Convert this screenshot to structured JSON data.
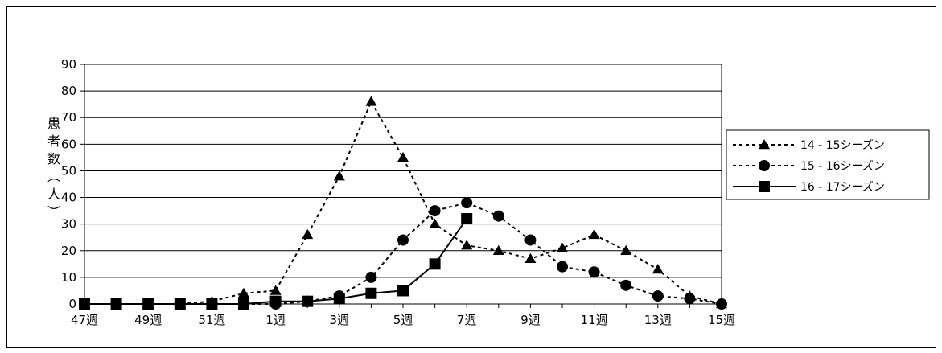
{
  "chart_data": {
    "type": "line",
    "ylabel": "患者数（人）",
    "xlabel": "",
    "ylim": [
      0,
      90
    ],
    "yticks": [
      0,
      10,
      20,
      30,
      40,
      50,
      60,
      70,
      80,
      90
    ],
    "categories": [
      "47週",
      "48週",
      "49週",
      "50週",
      "51週",
      "52週",
      "1週",
      "2週",
      "3週",
      "4週",
      "5週",
      "6週",
      "7週",
      "8週",
      "9週",
      "10週",
      "11週",
      "12週",
      "13週",
      "14週",
      "15週"
    ],
    "xtick_labels": [
      "47週",
      "",
      "49週",
      "",
      "51週",
      "",
      "1週",
      "",
      "3週",
      "",
      "5週",
      "",
      "7週",
      "",
      "9週",
      "",
      "11週",
      "",
      "13週",
      "",
      "15週"
    ],
    "grid": "horizontal",
    "legend_position": "right",
    "series": [
      {
        "name": "14 - 15シーズン",
        "marker": "triangle",
        "line": "dotted",
        "values": [
          0,
          0,
          0,
          0,
          1,
          4,
          5,
          26,
          48,
          76,
          55,
          30,
          22,
          20,
          17,
          21,
          26,
          20,
          13,
          3,
          0
        ]
      },
      {
        "name": "15 - 16シーズン",
        "marker": "circle",
        "line": "dotted",
        "values": [
          0,
          0,
          0,
          0,
          0,
          0,
          0,
          1,
          3,
          10,
          24,
          35,
          38,
          33,
          24,
          14,
          12,
          7,
          3,
          2,
          0
        ]
      },
      {
        "name": "16 - 17シーズン",
        "marker": "square",
        "line": "solid",
        "values": [
          0,
          0,
          0,
          0,
          0,
          0,
          1,
          1,
          2,
          4,
          5,
          15,
          32,
          null,
          null,
          null,
          null,
          null,
          null,
          null,
          null
        ]
      }
    ]
  }
}
